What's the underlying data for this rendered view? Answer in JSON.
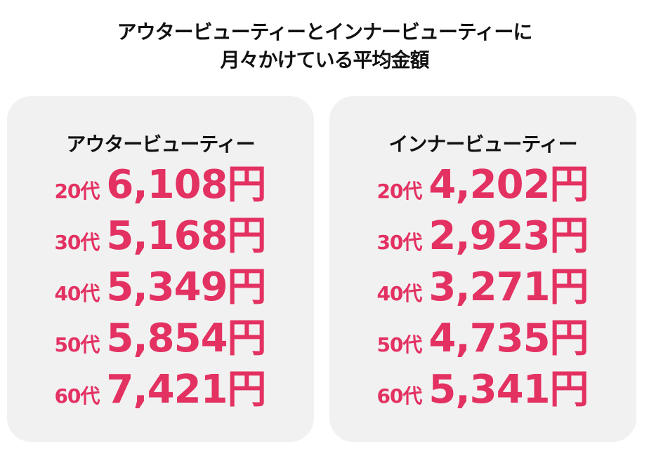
{
  "title": {
    "line1": "アウタービューティーとインナービューティーに",
    "line2": "月々かけている平均金額"
  },
  "colors": {
    "accent": "#E33162",
    "panel_bg": "#F1F1F1",
    "text": "#111111"
  },
  "panels": [
    {
      "title": "アウタービューティー",
      "rows": [
        {
          "age": "20代",
          "amount": "6,108",
          "unit": "円"
        },
        {
          "age": "30代",
          "amount": "5,168",
          "unit": "円"
        },
        {
          "age": "40代",
          "amount": "5,349",
          "unit": "円"
        },
        {
          "age": "50代",
          "amount": "5,854",
          "unit": "円"
        },
        {
          "age": "60代",
          "amount": "7,421",
          "unit": "円"
        }
      ]
    },
    {
      "title": "インナービューティー",
      "rows": [
        {
          "age": "20代",
          "amount": "4,202",
          "unit": "円"
        },
        {
          "age": "30代",
          "amount": "2,923",
          "unit": "円"
        },
        {
          "age": "40代",
          "amount": "3,271",
          "unit": "円"
        },
        {
          "age": "50代",
          "amount": "4,735",
          "unit": "円"
        },
        {
          "age": "60代",
          "amount": "5,341",
          "unit": "円"
        }
      ]
    }
  ],
  "chart_data": {
    "type": "table",
    "title": "アウタービューティーとインナービューティーに月々かけている平均金額",
    "categories": [
      "20代",
      "30代",
      "40代",
      "50代",
      "60代"
    ],
    "unit": "円",
    "series": [
      {
        "name": "アウタービューティー",
        "values": [
          6108,
          5168,
          5349,
          5854,
          7421
        ]
      },
      {
        "name": "インナービューティー",
        "values": [
          4202,
          2923,
          3271,
          4735,
          5341
        ]
      }
    ]
  }
}
